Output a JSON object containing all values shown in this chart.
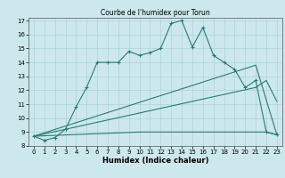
{
  "title": "Courbe de l'humidex pour Torun",
  "xlabel": "Humidex (Indice chaleur)",
  "bg_color": "#cce8ec",
  "grid_color": "#aad4d8",
  "line_color": "#2a7a75",
  "xlim": [
    -0.5,
    23.5
  ],
  "ylim": [
    8,
    17.2
  ],
  "xticks": [
    0,
    1,
    2,
    3,
    4,
    5,
    6,
    7,
    8,
    9,
    10,
    11,
    12,
    13,
    14,
    15,
    16,
    17,
    18,
    19,
    20,
    21,
    22,
    23
  ],
  "yticks": [
    8,
    9,
    10,
    11,
    12,
    13,
    14,
    15,
    16,
    17
  ],
  "line1_x": [
    0,
    1,
    2,
    3,
    4,
    5,
    6,
    7,
    8,
    9,
    10,
    11,
    12,
    13,
    14,
    15,
    16,
    17,
    18,
    19,
    20,
    21,
    22,
    23
  ],
  "line1_y": [
    8.7,
    8.4,
    8.6,
    9.2,
    10.8,
    12.2,
    14.0,
    14.0,
    14.0,
    14.8,
    14.5,
    14.7,
    15.0,
    16.8,
    17.0,
    15.1,
    16.5,
    14.5,
    14.0,
    13.5,
    12.2,
    12.7,
    9.0,
    8.8
  ],
  "line2_x": [
    0,
    21,
    23
  ],
  "line2_y": [
    8.7,
    13.8,
    8.8
  ],
  "line3_x": [
    0,
    10,
    22,
    23
  ],
  "line3_y": [
    8.7,
    9.0,
    9.0,
    8.8
  ],
  "line4_x": [
    0,
    21,
    22,
    23
  ],
  "line4_y": [
    8.7,
    12.2,
    12.7,
    11.2
  ]
}
